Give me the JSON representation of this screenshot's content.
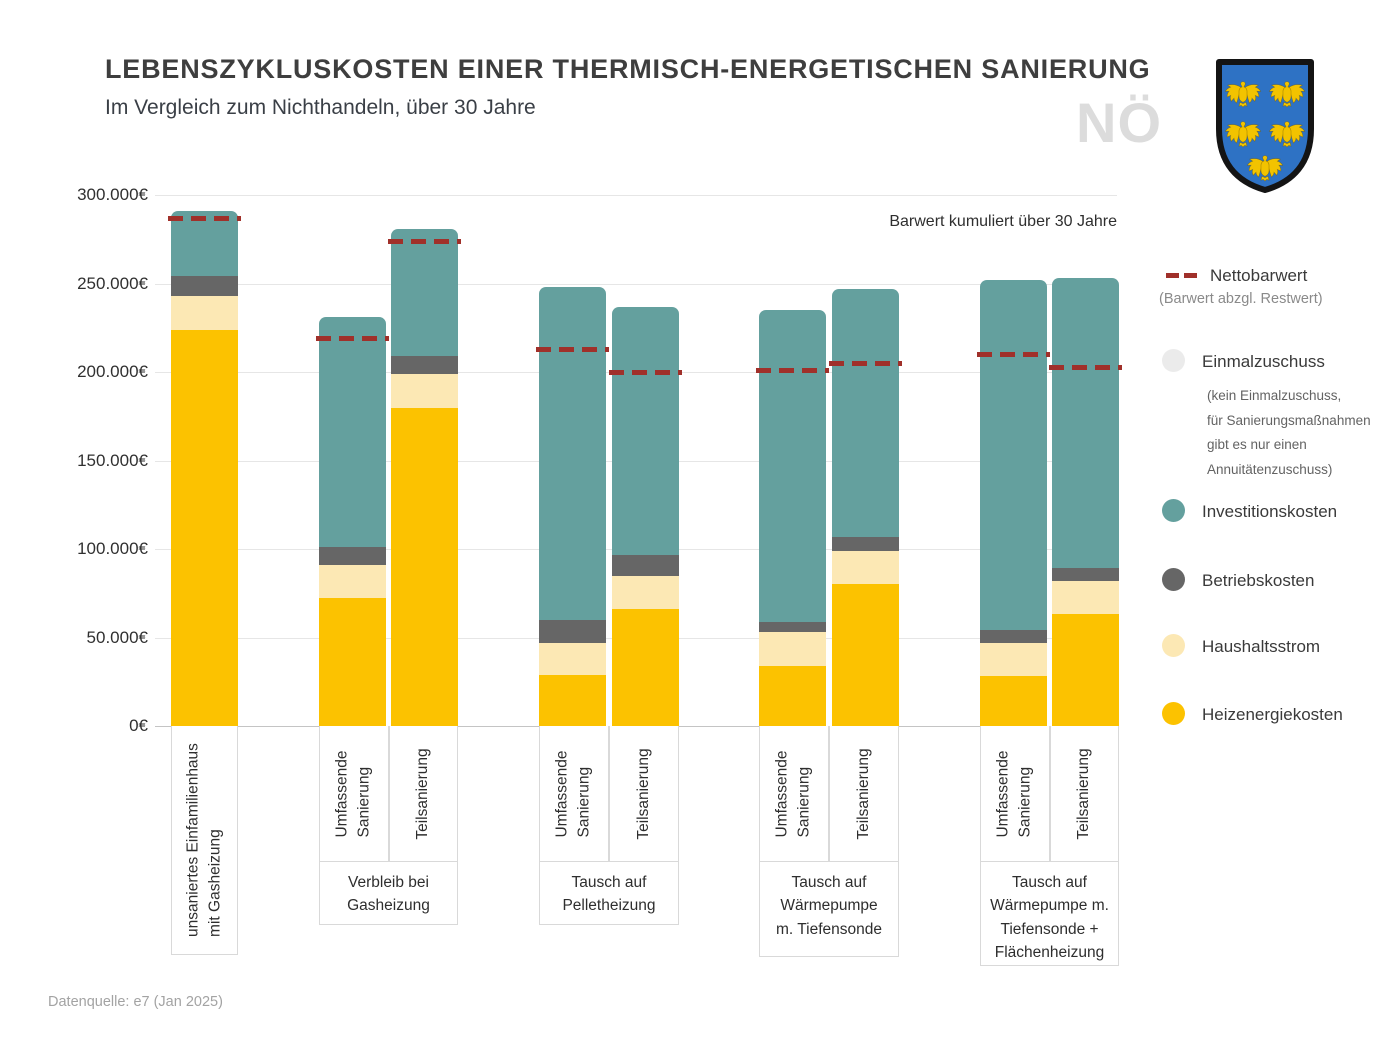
{
  "header": {
    "title": "LEBENSZYKLUSKOSTEN EINER THERMISCH-ENERGETISCHEN SANIERUNG",
    "subtitle": "Im Vergleich zum Nichthandeln, über 30 Jahre",
    "watermark": "NÖ"
  },
  "legend": {
    "nettobarwert": {
      "label": "Nettobarwert",
      "note": "(Barwert abzgl. Restwert)",
      "color": "#a0302a"
    },
    "einmalzuschuss": {
      "label": "Einmalzuschuss",
      "color": "#ebebeb",
      "note_lines": [
        "(kein Einmalzuschuss,",
        "für Sanierungsmaßnahmen",
        "gibt es nur einen",
        "Annuitätenzuschuss)"
      ]
    },
    "investitionskosten": {
      "label": "Investitionskosten",
      "color": "#64a09e"
    },
    "betriebskosten": {
      "label": "Betriebskosten",
      "color": "#666666"
    },
    "haushaltsstrom": {
      "label": "Haushaltsstrom",
      "color": "#fce8b4"
    },
    "heizenergiekosten": {
      "label": "Heizenergiekosten",
      "color": "#fcc200"
    }
  },
  "chart_data": {
    "type": "bar",
    "stacked": true,
    "title": "Lebenszykluskosten einer thermisch-energetischen Sanierung",
    "annotation": "Barwert kumuliert über 30 Jahre",
    "unit": "EUR",
    "ylim": [
      0,
      300000
    ],
    "ytick_labels": [
      "0€",
      "50.000€",
      "100.000€",
      "150.000€",
      "200.000€",
      "250.000€",
      "300.000€"
    ],
    "series_keys": [
      "heizenergiekosten",
      "haushaltsstrom",
      "betriebskosten",
      "investitionskosten"
    ],
    "legend_position": "right",
    "grid": true,
    "groups": [
      {
        "group_label_lines": [],
        "bars": [
          {
            "label_lines": [
              "unsaniertes Einfamilienhaus",
              "mit Gasheizung"
            ],
            "heizenergiekosten": 224000,
            "haushaltsstrom": 19000,
            "betriebskosten": 11000,
            "investitionskosten": 37000,
            "total": 291000,
            "nettobarwert": 287000
          }
        ]
      },
      {
        "group_label_lines": [
          "Verbleib bei",
          "Gasheizung"
        ],
        "bars": [
          {
            "label_lines": [
              "Umfassende",
              "Sanierung"
            ],
            "heizenergiekosten": 72000,
            "haushaltsstrom": 19000,
            "betriebskosten": 10000,
            "investitionskosten": 130000,
            "total": 231000,
            "nettobarwert": 219000
          },
          {
            "label_lines": [
              "Teilsanierung"
            ],
            "heizenergiekosten": 180000,
            "haushaltsstrom": 19000,
            "betriebskosten": 10000,
            "investitionskosten": 72000,
            "total": 281000,
            "nettobarwert": 274000
          }
        ]
      },
      {
        "group_label_lines": [
          "Tausch auf",
          "Pelletheizung"
        ],
        "bars": [
          {
            "label_lines": [
              "Umfassende",
              "Sanierung"
            ],
            "heizenergiekosten": 29000,
            "haushaltsstrom": 18000,
            "betriebskosten": 13000,
            "investitionskosten": 188000,
            "total": 248000,
            "nettobarwert": 213000
          },
          {
            "label_lines": [
              "Teilsanierung"
            ],
            "heizenergiekosten": 66000,
            "haushaltsstrom": 19000,
            "betriebskosten": 12000,
            "investitionskosten": 140000,
            "total": 237000,
            "nettobarwert": 200000
          }
        ]
      },
      {
        "group_label_lines": [
          "Tausch auf",
          "Wärmepumpe",
          "m. Tiefensonde"
        ],
        "bars": [
          {
            "label_lines": [
              "Umfassende",
              "Sanierung"
            ],
            "heizenergiekosten": 34000,
            "haushaltsstrom": 19000,
            "betriebskosten": 6000,
            "investitionskosten": 176000,
            "total": 235000,
            "nettobarwert": 201000
          },
          {
            "label_lines": [
              "Teilsanierung"
            ],
            "heizenergiekosten": 80000,
            "haushaltsstrom": 19000,
            "betriebskosten": 8000,
            "investitionskosten": 140000,
            "total": 247000,
            "nettobarwert": 205000
          }
        ]
      },
      {
        "group_label_lines": [
          "Tausch auf",
          "Wärmepumpe m.",
          "Tiefensonde  +",
          "Flächenheizung"
        ],
        "bars": [
          {
            "label_lines": [
              "Umfassende",
              "Sanierung"
            ],
            "heizenergiekosten": 28000,
            "haushaltsstrom": 19000,
            "betriebskosten": 7000,
            "investitionskosten": 198000,
            "total": 252000,
            "nettobarwert": 210000
          },
          {
            "label_lines": [
              "Teilsanierung"
            ],
            "heizenergiekosten": 63000,
            "haushaltsstrom": 19000,
            "betriebskosten": 7000,
            "investitionskosten": 164000,
            "total": 253000,
            "nettobarwert": 203000
          }
        ]
      }
    ]
  },
  "footer": {
    "source": "Datenquelle: e7 (Jan 2025)"
  }
}
